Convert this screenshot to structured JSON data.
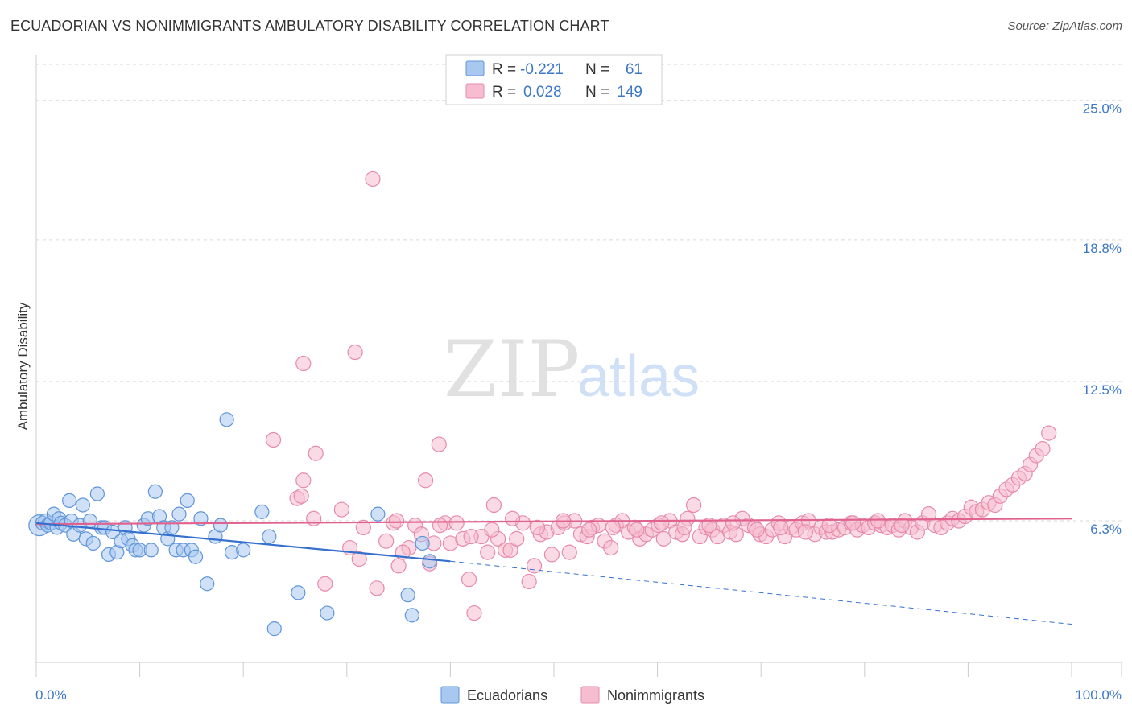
{
  "title": "ECUADORIAN VS NONIMMIGRANTS AMBULATORY DISABILITY CORRELATION CHART",
  "source": "Source: ZipAtlas.com",
  "watermark": {
    "zip": "ZIP",
    "atlas": "atlas"
  },
  "colors": {
    "blue_fill": "#a9c8f0",
    "blue_stroke": "#5f95d9",
    "blue_line": "#3570cf",
    "pink_fill": "#f6bdd0",
    "pink_stroke": "#e78aaa",
    "pink_line": "#e0628f",
    "tick_text": "#3d78c7",
    "grid": "#d9d9d9"
  },
  "stats": {
    "rows": [
      {
        "r_label": "R =",
        "r_value": "-0.221",
        "n_label": "N =",
        "n_value": "61",
        "series": "Ecuadorians"
      },
      {
        "r_label": "R =",
        "r_value": "0.028",
        "n_label": "N =",
        "n_value": "149",
        "series": "Nonimmigrants"
      }
    ]
  },
  "chart_data": {
    "type": "scatter",
    "title": "ECUADORIAN VS NONIMMIGRANTS AMBULATORY DISABILITY CORRELATION CHART",
    "xlabel": "",
    "ylabel": "Ambulatory Disability",
    "xlim": [
      0,
      100
    ],
    "ylim": [
      0,
      26.6
    ],
    "x_tick_labels": [
      "0.0%",
      "100.0%"
    ],
    "y_ticks": [
      6.3,
      12.5,
      18.8,
      25.0
    ],
    "y_tick_labels": [
      "6.3%",
      "12.5%",
      "18.8%",
      "25.0%"
    ],
    "grid": "horizontal dashed",
    "legend_position": "bottom-center",
    "series": [
      {
        "name": "Ecuadorians",
        "color": "#a9c8f0",
        "trend": {
          "x": [
            0,
            40
          ],
          "y": [
            6.2,
            4.5
          ]
        },
        "trend_extension": {
          "x": [
            40,
            100
          ],
          "y": [
            4.5,
            1.7
          ]
        },
        "points": [
          [
            0.3,
            6.1
          ],
          [
            0.6,
            6.2
          ],
          [
            0.9,
            6.3
          ],
          [
            1.1,
            6.1
          ],
          [
            1.4,
            6.2
          ],
          [
            1.7,
            6.6
          ],
          [
            2.0,
            6.0
          ],
          [
            2.2,
            6.4
          ],
          [
            2.4,
            6.2
          ],
          [
            2.8,
            6.1
          ],
          [
            3.2,
            7.2
          ],
          [
            3.4,
            6.3
          ],
          [
            3.6,
            5.7
          ],
          [
            4.2,
            6.1
          ],
          [
            4.5,
            7.0
          ],
          [
            4.8,
            5.5
          ],
          [
            5.2,
            6.3
          ],
          [
            5.5,
            5.3
          ],
          [
            5.9,
            7.5
          ],
          [
            6.3,
            6.0
          ],
          [
            6.6,
            6.0
          ],
          [
            7.0,
            4.8
          ],
          [
            7.4,
            5.8
          ],
          [
            7.8,
            4.9
          ],
          [
            8.2,
            5.4
          ],
          [
            8.6,
            6.0
          ],
          [
            8.9,
            5.5
          ],
          [
            9.3,
            5.2
          ],
          [
            9.6,
            5.0
          ],
          [
            10.0,
            5.0
          ],
          [
            10.4,
            6.1
          ],
          [
            10.8,
            6.4
          ],
          [
            11.1,
            5.0
          ],
          [
            11.5,
            7.6
          ],
          [
            11.9,
            6.5
          ],
          [
            12.3,
            6.0
          ],
          [
            12.7,
            5.5
          ],
          [
            13.1,
            6.0
          ],
          [
            13.5,
            5.0
          ],
          [
            13.8,
            6.6
          ],
          [
            14.2,
            5.0
          ],
          [
            14.6,
            7.2
          ],
          [
            15.0,
            5.0
          ],
          [
            15.4,
            4.7
          ],
          [
            15.9,
            6.4
          ],
          [
            16.5,
            3.5
          ],
          [
            17.3,
            5.6
          ],
          [
            17.8,
            6.1
          ],
          [
            18.4,
            10.8
          ],
          [
            18.9,
            4.9
          ],
          [
            20.0,
            5.0
          ],
          [
            21.8,
            6.7
          ],
          [
            22.5,
            5.6
          ],
          [
            23.0,
            1.5
          ],
          [
            25.3,
            3.1
          ],
          [
            28.1,
            2.2
          ],
          [
            33.0,
            6.6
          ],
          [
            35.9,
            3.0
          ],
          [
            36.3,
            2.1
          ],
          [
            37.3,
            5.3
          ],
          [
            38.0,
            4.5
          ]
        ]
      },
      {
        "name": "Nonimmigrants",
        "color": "#f6bdd0",
        "trend": {
          "x": [
            0,
            100
          ],
          "y": [
            6.15,
            6.4
          ]
        },
        "points": [
          [
            32.5,
            21.5
          ],
          [
            25.8,
            13.3
          ],
          [
            30.8,
            13.8
          ],
          [
            22.9,
            9.9
          ],
          [
            25.2,
            7.3
          ],
          [
            25.6,
            7.4
          ],
          [
            25.8,
            8.1
          ],
          [
            27.0,
            9.3
          ],
          [
            26.8,
            6.4
          ],
          [
            27.9,
            3.5
          ],
          [
            29.5,
            6.8
          ],
          [
            30.3,
            5.1
          ],
          [
            31.2,
            4.6
          ],
          [
            31.6,
            6.0
          ],
          [
            32.9,
            3.3
          ],
          [
            33.8,
            5.4
          ],
          [
            34.5,
            6.2
          ],
          [
            35.0,
            4.3
          ],
          [
            36.0,
            5.1
          ],
          [
            36.6,
            6.1
          ],
          [
            37.2,
            5.7
          ],
          [
            37.6,
            8.1
          ],
          [
            38.0,
            4.4
          ],
          [
            38.4,
            5.3
          ],
          [
            38.9,
            9.7
          ],
          [
            39.5,
            6.2
          ],
          [
            40.0,
            5.3
          ],
          [
            40.6,
            6.2
          ],
          [
            41.2,
            5.5
          ],
          [
            41.8,
            3.7
          ],
          [
            42.3,
            2.2
          ],
          [
            43.0,
            5.6
          ],
          [
            43.6,
            4.9
          ],
          [
            44.2,
            7.0
          ],
          [
            44.6,
            5.5
          ],
          [
            45.3,
            5.0
          ],
          [
            45.8,
            5.0
          ],
          [
            46.4,
            5.5
          ],
          [
            47.0,
            6.2
          ],
          [
            47.6,
            3.6
          ],
          [
            48.1,
            4.3
          ],
          [
            48.7,
            5.7
          ],
          [
            49.3,
            5.8
          ],
          [
            49.8,
            4.8
          ],
          [
            50.4,
            6.0
          ],
          [
            51.0,
            6.2
          ],
          [
            51.5,
            4.9
          ],
          [
            52.0,
            6.3
          ],
          [
            52.6,
            5.7
          ],
          [
            53.2,
            5.6
          ],
          [
            53.7,
            6.0
          ],
          [
            54.3,
            6.1
          ],
          [
            54.9,
            5.4
          ],
          [
            55.5,
            5.1
          ],
          [
            56.0,
            6.1
          ],
          [
            56.6,
            6.3
          ],
          [
            57.2,
            5.8
          ],
          [
            57.8,
            6.0
          ],
          [
            58.3,
            5.5
          ],
          [
            58.9,
            5.7
          ],
          [
            59.5,
            5.9
          ],
          [
            60.1,
            6.1
          ],
          [
            60.6,
            5.5
          ],
          [
            61.2,
            6.3
          ],
          [
            61.8,
            5.8
          ],
          [
            62.4,
            5.7
          ],
          [
            62.9,
            6.4
          ],
          [
            63.5,
            7.0
          ],
          [
            64.1,
            5.6
          ],
          [
            64.7,
            6.0
          ],
          [
            65.3,
            5.9
          ],
          [
            65.8,
            5.6
          ],
          [
            66.4,
            6.1
          ],
          [
            67.0,
            5.8
          ],
          [
            67.6,
            5.7
          ],
          [
            68.2,
            6.4
          ],
          [
            68.8,
            6.1
          ],
          [
            69.4,
            6.0
          ],
          [
            69.9,
            5.7
          ],
          [
            70.5,
            5.6
          ],
          [
            71.1,
            5.9
          ],
          [
            71.7,
            6.2
          ],
          [
            72.3,
            5.6
          ],
          [
            72.9,
            6.0
          ],
          [
            73.4,
            5.9
          ],
          [
            74.0,
            6.2
          ],
          [
            74.6,
            6.3
          ],
          [
            75.2,
            5.7
          ],
          [
            75.8,
            6.0
          ],
          [
            76.3,
            5.8
          ],
          [
            76.9,
            5.8
          ],
          [
            77.5,
            5.9
          ],
          [
            78.1,
            6.0
          ],
          [
            78.7,
            6.2
          ],
          [
            79.3,
            5.9
          ],
          [
            79.8,
            6.1
          ],
          [
            80.4,
            6.0
          ],
          [
            81.0,
            6.2
          ],
          [
            81.6,
            6.1
          ],
          [
            82.2,
            6.0
          ],
          [
            82.7,
            6.1
          ],
          [
            83.3,
            5.9
          ],
          [
            83.9,
            6.3
          ],
          [
            84.5,
            6.0
          ],
          [
            85.1,
            5.8
          ],
          [
            85.6,
            6.2
          ],
          [
            86.2,
            6.6
          ],
          [
            86.8,
            6.1
          ],
          [
            87.4,
            6.0
          ],
          [
            88.0,
            6.2
          ],
          [
            88.5,
            6.4
          ],
          [
            89.1,
            6.3
          ],
          [
            89.7,
            6.5
          ],
          [
            90.3,
            6.9
          ],
          [
            90.8,
            6.7
          ],
          [
            91.4,
            6.8
          ],
          [
            92.0,
            7.1
          ],
          [
            92.6,
            7.0
          ],
          [
            93.1,
            7.4
          ],
          [
            93.7,
            7.7
          ],
          [
            94.3,
            7.9
          ],
          [
            94.9,
            8.2
          ],
          [
            95.5,
            8.4
          ],
          [
            96.0,
            8.8
          ],
          [
            96.6,
            9.2
          ],
          [
            97.2,
            9.5
          ],
          [
            97.8,
            10.2
          ],
          [
            34.8,
            6.3
          ],
          [
            35.4,
            4.9
          ],
          [
            39.0,
            6.1
          ],
          [
            42.0,
            5.6
          ],
          [
            44.0,
            5.9
          ],
          [
            46.0,
            6.4
          ],
          [
            48.4,
            6.0
          ],
          [
            50.9,
            6.3
          ],
          [
            53.4,
            5.9
          ],
          [
            55.7,
            6.0
          ],
          [
            58.0,
            5.9
          ],
          [
            60.4,
            6.2
          ],
          [
            62.6,
            6.0
          ],
          [
            65.0,
            6.1
          ],
          [
            67.3,
            6.2
          ],
          [
            69.6,
            5.9
          ],
          [
            71.9,
            6.0
          ],
          [
            74.3,
            5.8
          ],
          [
            76.6,
            6.1
          ],
          [
            78.9,
            6.2
          ],
          [
            81.3,
            6.3
          ],
          [
            83.6,
            6.1
          ]
        ]
      }
    ]
  }
}
